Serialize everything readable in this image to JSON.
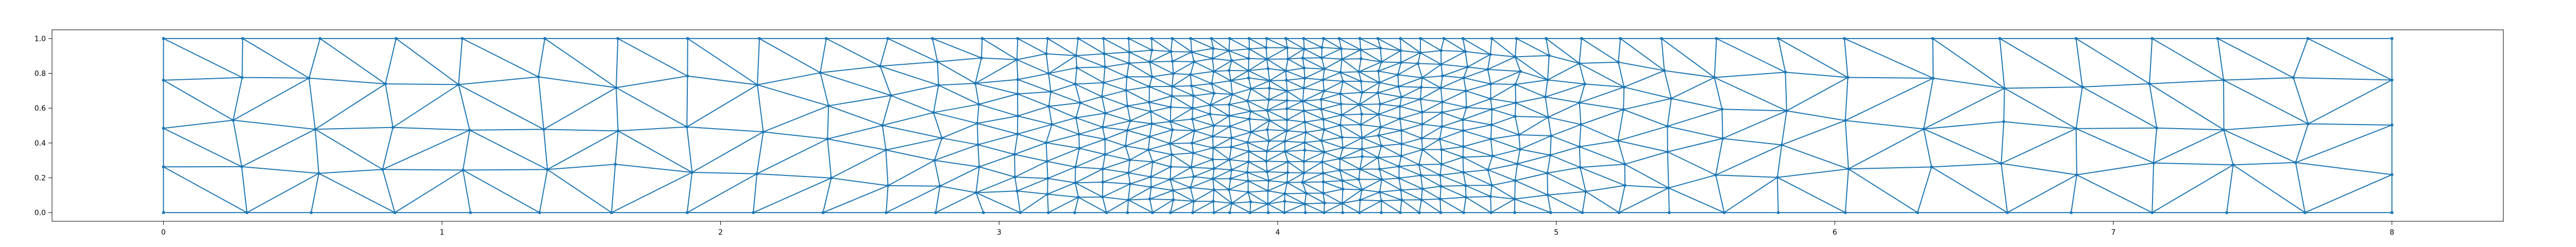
{
  "figure": {
    "kind": "triangular-mesh",
    "mesh_color": "#1f77b4",
    "frame_color": "#000000",
    "domain": {
      "x": [
        0,
        8
      ],
      "y": [
        0,
        1
      ]
    },
    "axes": {
      "xlim": [
        -0.4,
        8.4
      ],
      "ylim": [
        -0.05,
        1.05
      ],
      "x_ticks": [
        "0",
        "1",
        "2",
        "3",
        "4",
        "5",
        "6",
        "7",
        "8"
      ],
      "y_ticks": [
        "0.0",
        "0.2",
        "0.4",
        "0.6",
        "0.8",
        "1.0"
      ],
      "grid": false
    },
    "refinement": {
      "center_x": 4.05,
      "sigma": 1.0
    }
  }
}
